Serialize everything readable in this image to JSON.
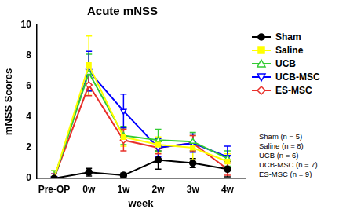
{
  "chart_data": {
    "type": "line",
    "title": "Acute mNSS",
    "x_label": "week",
    "y_label": "mNSS Scores",
    "categories": [
      "Pre-OP",
      "0w",
      "1w",
      "2w",
      "3w",
      "4w"
    ],
    "ylim": [
      0,
      10
    ],
    "yticks": [
      0,
      2,
      4,
      6,
      8,
      10
    ],
    "grid": false,
    "legend": "right",
    "series": [
      {
        "name": "Sham",
        "color": "#000000",
        "marker": "circle",
        "values": [
          0,
          0.4,
          0.2,
          1.2,
          1.0,
          0.6
        ],
        "errors": [
          0,
          0.25,
          0.15,
          0.6,
          0.3,
          0.5
        ]
      },
      {
        "name": "Saline",
        "color": "#ffff00",
        "marker": "square",
        "values": [
          0,
          7.4,
          2.7,
          2.2,
          2.0,
          1.1
        ],
        "errors": [
          0.5,
          1.9,
          0.6,
          0.5,
          0.8,
          0.5
        ]
      },
      {
        "name": "UCB",
        "color": "#33cc33",
        "marker": "triangle",
        "values": [
          0,
          6.9,
          2.8,
          2.5,
          2.4,
          1.3
        ],
        "errors": [
          0.5,
          1.2,
          0.6,
          0.7,
          0.6,
          0.5
        ]
      },
      {
        "name": "UCB-MSC",
        "color": "#0000ff",
        "marker": "triangle_down",
        "values": [
          0,
          7.0,
          4.4,
          2.0,
          2.3,
          1.4
        ],
        "errors": [
          0.3,
          1.3,
          1.1,
          0.6,
          0.6,
          0.7
        ]
      },
      {
        "name": "ES-MSC",
        "color": "#e8302a",
        "marker": "diamond",
        "values": [
          0,
          6.1,
          2.5,
          2.0,
          2.3,
          0.6
        ],
        "errors": [
          0.3,
          0.7,
          0.7,
          0.4,
          0.5,
          0.4
        ]
      }
    ],
    "annotations": [
      "Sham (n = 5)",
      "Saline (n = 8)",
      "UCB (n = 6)",
      "UCB-MSC (n = 7)",
      "ES-MSC (n = 9)"
    ]
  }
}
